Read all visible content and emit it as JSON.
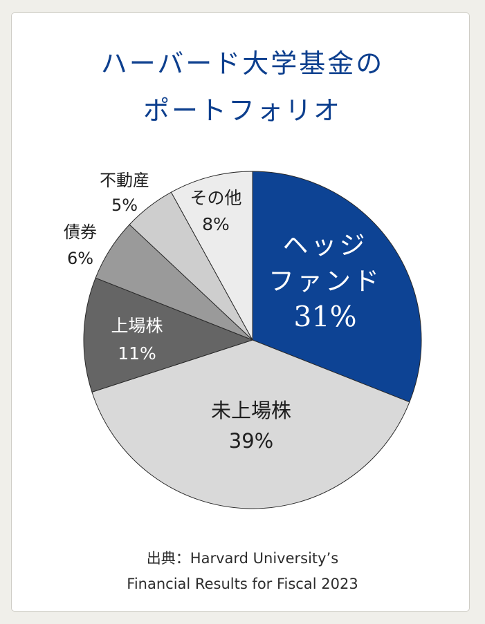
{
  "title": {
    "line1": "ハーバード大学基金の",
    "line2": "ポートフォリオ"
  },
  "chart_data": {
    "type": "pie",
    "title": "ハーバード大学基金のポートフォリオ",
    "unit": "%",
    "start": "12 o'clock, clockwise",
    "slices": [
      {
        "label_lines": [
          "ヘッジ",
          "ファンド"
        ],
        "value": 31,
        "value_label": "31%",
        "color": "#0d4394",
        "label_color": "#ffffff",
        "label_position": "inside"
      },
      {
        "label_lines": [
          "未上場株"
        ],
        "value": 39,
        "value_label": "39%",
        "color": "#d9d9d9",
        "label_color": "#1f1f1f",
        "label_position": "inside"
      },
      {
        "label_lines": [
          "上場株"
        ],
        "value": 11,
        "value_label": "11%",
        "color": "#656565",
        "label_color": "#ffffff",
        "label_position": "inside"
      },
      {
        "label_lines": [
          "債券"
        ],
        "value": 6,
        "value_label": "6%",
        "color": "#9a9a9a",
        "label_color": "#1f1f1f",
        "label_position": "outside"
      },
      {
        "label_lines": [
          "不動産"
        ],
        "value": 5,
        "value_label": "5%",
        "color": "#cecece",
        "label_color": "#1f1f1f",
        "label_position": "outside"
      },
      {
        "label_lines": [
          "その他"
        ],
        "value": 8,
        "value_label": "8%",
        "color": "#ececec",
        "label_color": "#1f1f1f",
        "label_position": "inside"
      }
    ]
  },
  "source": {
    "line1": "出典：Harvard University’s",
    "line2": "Financial Results for Fiscal 2023"
  }
}
